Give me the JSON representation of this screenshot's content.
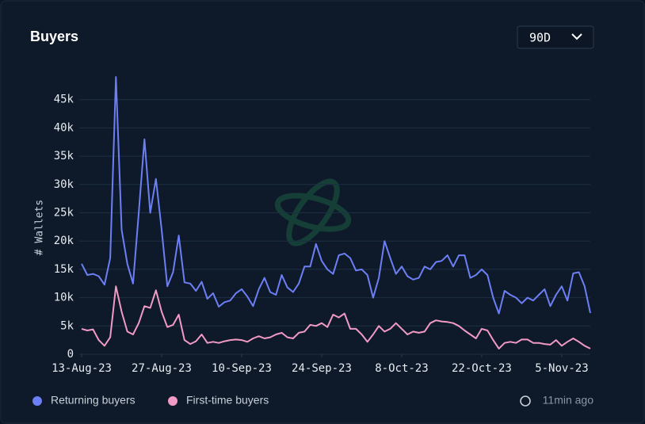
{
  "chart_data": {
    "type": "line",
    "title": "Buyers",
    "range_selector": "90D",
    "y_label": "# Wallets",
    "updated": "11min ago",
    "x": [
      "13-Aug-23",
      "14-Aug-23",
      "15-Aug-23",
      "16-Aug-23",
      "17-Aug-23",
      "18-Aug-23",
      "19-Aug-23",
      "20-Aug-23",
      "21-Aug-23",
      "22-Aug-23",
      "23-Aug-23",
      "24-Aug-23",
      "25-Aug-23",
      "26-Aug-23",
      "27-Aug-23",
      "28-Aug-23",
      "29-Aug-23",
      "30-Aug-23",
      "31-Aug-23",
      "1-Sep-23",
      "2-Sep-23",
      "3-Sep-23",
      "4-Sep-23",
      "5-Sep-23",
      "6-Sep-23",
      "7-Sep-23",
      "8-Sep-23",
      "9-Sep-23",
      "10-Sep-23",
      "11-Sep-23",
      "12-Sep-23",
      "13-Sep-23",
      "14-Sep-23",
      "15-Sep-23",
      "16-Sep-23",
      "17-Sep-23",
      "18-Sep-23",
      "19-Sep-23",
      "20-Sep-23",
      "21-Sep-23",
      "22-Sep-23",
      "23-Sep-23",
      "24-Sep-23",
      "25-Sep-23",
      "26-Sep-23",
      "27-Sep-23",
      "28-Sep-23",
      "29-Sep-23",
      "30-Sep-23",
      "1-Oct-23",
      "2-Oct-23",
      "3-Oct-23",
      "4-Oct-23",
      "5-Oct-23",
      "6-Oct-23",
      "7-Oct-23",
      "8-Oct-23",
      "9-Oct-23",
      "10-Oct-23",
      "11-Oct-23",
      "12-Oct-23",
      "13-Oct-23",
      "14-Oct-23",
      "15-Oct-23",
      "16-Oct-23",
      "17-Oct-23",
      "18-Oct-23",
      "19-Oct-23",
      "20-Oct-23",
      "21-Oct-23",
      "22-Oct-23",
      "23-Oct-23",
      "24-Oct-23",
      "25-Oct-23",
      "26-Oct-23",
      "27-Oct-23",
      "28-Oct-23",
      "29-Oct-23",
      "30-Oct-23",
      "31-Oct-23",
      "1-Nov-23",
      "2-Nov-23",
      "3-Nov-23",
      "4-Nov-23",
      "5-Nov-23",
      "6-Nov-23",
      "7-Nov-23",
      "8-Nov-23",
      "9-Nov-23",
      "10-Nov-23"
    ],
    "xticks": [
      "13-Aug-23",
      "27-Aug-23",
      "10-Sep-23",
      "24-Sep-23",
      "8-Oct-23",
      "22-Oct-23",
      "5-Nov-23"
    ],
    "ylim": [
      0,
      50000
    ],
    "yticks": [
      0,
      {
        "value": 5000,
        "label": "5k"
      },
      {
        "value": 10000,
        "label": "10k"
      },
      {
        "value": 15000,
        "label": "15k"
      },
      {
        "value": 20000,
        "label": "20k"
      },
      {
        "value": 25000,
        "label": "25k"
      },
      {
        "value": 30000,
        "label": "30k"
      },
      {
        "value": 35000,
        "label": "35k"
      },
      {
        "value": 40000,
        "label": "40k"
      },
      {
        "value": 45000,
        "label": "45k"
      }
    ],
    "grid": true,
    "legend": "bottom-left",
    "series": [
      {
        "name": "Returning buyers",
        "color": "#6d7ff5",
        "values": [
          16000,
          14000,
          14200,
          13800,
          12300,
          17000,
          49000,
          22000,
          16000,
          12500,
          25000,
          38000,
          25000,
          31000,
          22000,
          12000,
          14500,
          21000,
          12700,
          12500,
          11200,
          12800,
          9800,
          10800,
          8400,
          9200,
          9500,
          10800,
          11500,
          10200,
          8500,
          11500,
          13500,
          11000,
          10500,
          14000,
          11800,
          11000,
          12500,
          15500,
          15500,
          19500,
          16500,
          15000,
          14200,
          17500,
          17800,
          17000,
          14800,
          15000,
          14000,
          10000,
          13500,
          20000,
          17000,
          14200,
          15500,
          13800,
          13200,
          13500,
          15500,
          15000,
          16300,
          16500,
          17500,
          15500,
          17500,
          17500,
          13500,
          14000,
          15000,
          14000,
          10000,
          7200,
          11200,
          10500,
          10000,
          9000,
          10000,
          9500,
          10500,
          11500,
          8500,
          10500,
          12000,
          9500,
          14300,
          14500,
          12000,
          7300
        ]
      },
      {
        "name": "First-time buyers",
        "color": "#f29ac6",
        "values": [
          4500,
          4200,
          4400,
          2500,
          1500,
          3000,
          12000,
          7500,
          4000,
          3500,
          5500,
          8500,
          8200,
          11300,
          7500,
          4800,
          5200,
          7000,
          2500,
          1800,
          2300,
          3500,
          2000,
          2200,
          2000,
          2300,
          2500,
          2600,
          2500,
          2200,
          2800,
          3200,
          2800,
          3000,
          3500,
          3800,
          3000,
          2800,
          3800,
          4000,
          5200,
          5000,
          5500,
          4800,
          7000,
          6500,
          7200,
          4500,
          4500,
          3500,
          2200,
          3500,
          5000,
          4000,
          4500,
          5500,
          4500,
          3500,
          4000,
          3800,
          4000,
          5500,
          6000,
          5800,
          5700,
          5500,
          5000,
          4200,
          3500,
          2800,
          4500,
          4200,
          2500,
          1000,
          2000,
          2200,
          2000,
          2600,
          2600,
          2000,
          2000,
          1800,
          1700,
          2500,
          1500,
          2200,
          2800,
          2200,
          1500,
          1000
        ]
      }
    ]
  }
}
